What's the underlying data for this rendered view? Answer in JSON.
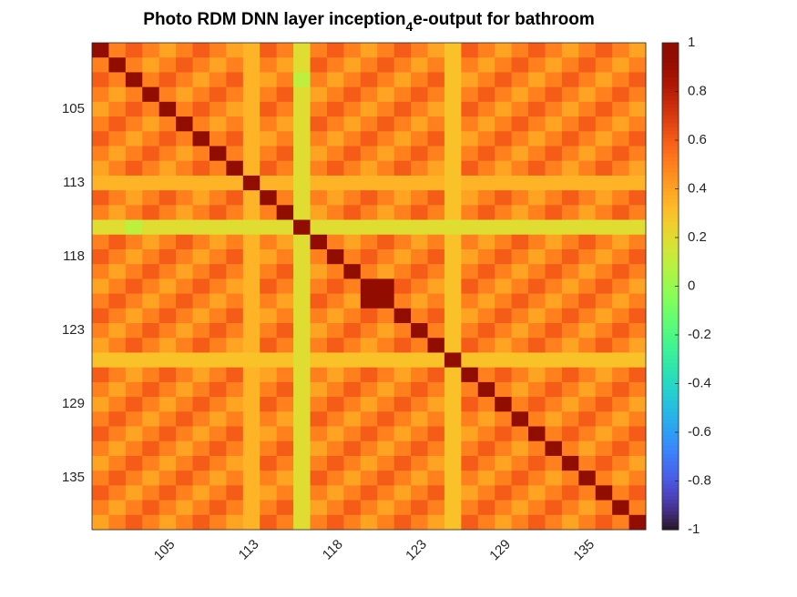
{
  "chart_data": {
    "type": "heatmap",
    "title": [
      "Photo RDM DNN layer inception",
      "4",
      "e-output for bathroom"
    ],
    "categories": [
      null,
      null,
      null,
      null,
      "105",
      null,
      null,
      null,
      null,
      "113",
      null,
      null,
      null,
      null,
      "118",
      null,
      null,
      null,
      null,
      "123",
      null,
      null,
      null,
      null,
      "129",
      null,
      null,
      null,
      null,
      "135",
      null,
      null,
      null
    ],
    "colormap": "turbo",
    "clim": [
      -1,
      1
    ],
    "cticks": [
      -1,
      -0.8,
      -0.6,
      -0.4,
      -0.2,
      0,
      0.2,
      0.4,
      0.6,
      0.8,
      1
    ],
    "values": [
      [
        1,
        0.5,
        0.6,
        0.5,
        0.4,
        0.5,
        0.6,
        0.5,
        0.4,
        0.35,
        0.6,
        0.5,
        0.2,
        0.5,
        0.6,
        0.5,
        0.4,
        0.5,
        0.6,
        0.5,
        0.4,
        0.3,
        0.6,
        0.5,
        0.4,
        0.5,
        0.6,
        0.5,
        0.4,
        0.5,
        0.6,
        0.5,
        0.4
      ],
      [
        0.5,
        1,
        0.5,
        0.4,
        0.5,
        0.6,
        0.5,
        0.4,
        0.5,
        0.35,
        0.5,
        0.4,
        0.2,
        0.6,
        0.5,
        0.4,
        0.5,
        0.6,
        0.5,
        0.4,
        0.5,
        0.3,
        0.5,
        0.4,
        0.5,
        0.6,
        0.5,
        0.4,
        0.5,
        0.6,
        0.5,
        0.4,
        0.5
      ],
      [
        0.6,
        0.5,
        1,
        0.5,
        0.6,
        0.5,
        0.4,
        0.5,
        0.6,
        0.35,
        0.4,
        0.5,
        0.1,
        0.5,
        0.4,
        0.5,
        0.6,
        0.5,
        0.4,
        0.5,
        0.6,
        0.3,
        0.4,
        0.5,
        0.6,
        0.5,
        0.4,
        0.5,
        0.6,
        0.5,
        0.4,
        0.5,
        0.6
      ],
      [
        0.5,
        0.4,
        0.5,
        1,
        0.5,
        0.4,
        0.5,
        0.6,
        0.5,
        0.35,
        0.5,
        0.6,
        0.2,
        0.4,
        0.5,
        0.6,
        0.5,
        0.4,
        0.5,
        0.6,
        0.5,
        0.3,
        0.5,
        0.6,
        0.5,
        0.4,
        0.5,
        0.6,
        0.5,
        0.4,
        0.5,
        0.6,
        0.5
      ],
      [
        0.4,
        0.5,
        0.6,
        0.5,
        1,
        0.5,
        0.6,
        0.5,
        0.4,
        0.35,
        0.6,
        0.5,
        0.2,
        0.5,
        0.6,
        0.5,
        0.4,
        0.5,
        0.6,
        0.5,
        0.4,
        0.3,
        0.6,
        0.5,
        0.4,
        0.5,
        0.6,
        0.5,
        0.4,
        0.5,
        0.6,
        0.5,
        0.4
      ],
      [
        0.5,
        0.6,
        0.5,
        0.4,
        0.5,
        1,
        0.5,
        0.4,
        0.5,
        0.35,
        0.5,
        0.4,
        0.2,
        0.6,
        0.5,
        0.4,
        0.5,
        0.6,
        0.5,
        0.4,
        0.5,
        0.3,
        0.5,
        0.4,
        0.5,
        0.6,
        0.5,
        0.4,
        0.5,
        0.6,
        0.5,
        0.4,
        0.5
      ],
      [
        0.6,
        0.5,
        0.4,
        0.5,
        0.6,
        0.5,
        1,
        0.5,
        0.6,
        0.35,
        0.4,
        0.5,
        0.2,
        0.5,
        0.4,
        0.5,
        0.6,
        0.5,
        0.4,
        0.5,
        0.6,
        0.3,
        0.4,
        0.5,
        0.6,
        0.5,
        0.4,
        0.5,
        0.6,
        0.5,
        0.4,
        0.5,
        0.6
      ],
      [
        0.5,
        0.4,
        0.5,
        0.6,
        0.5,
        0.4,
        0.5,
        1,
        0.5,
        0.35,
        0.5,
        0.6,
        0.2,
        0.4,
        0.5,
        0.6,
        0.5,
        0.4,
        0.5,
        0.6,
        0.5,
        0.3,
        0.5,
        0.6,
        0.5,
        0.4,
        0.5,
        0.6,
        0.5,
        0.4,
        0.5,
        0.6,
        0.5
      ],
      [
        0.4,
        0.5,
        0.6,
        0.5,
        0.4,
        0.5,
        0.6,
        0.5,
        1,
        0.35,
        0.6,
        0.5,
        0.2,
        0.5,
        0.6,
        0.5,
        0.4,
        0.5,
        0.6,
        0.5,
        0.4,
        0.3,
        0.6,
        0.5,
        0.4,
        0.5,
        0.6,
        0.5,
        0.4,
        0.5,
        0.6,
        0.5,
        0.4
      ],
      [
        0.35,
        0.35,
        0.35,
        0.35,
        0.35,
        0.35,
        0.35,
        0.35,
        0.35,
        1,
        0.35,
        0.35,
        0.2,
        0.35,
        0.35,
        0.35,
        0.35,
        0.35,
        0.35,
        0.35,
        0.35,
        0.3,
        0.35,
        0.35,
        0.35,
        0.35,
        0.35,
        0.35,
        0.35,
        0.35,
        0.35,
        0.35,
        0.35
      ],
      [
        0.6,
        0.5,
        0.4,
        0.5,
        0.6,
        0.5,
        0.4,
        0.5,
        0.6,
        0.35,
        1,
        0.5,
        0.2,
        0.5,
        0.4,
        0.5,
        0.6,
        0.5,
        0.4,
        0.5,
        0.6,
        0.3,
        0.4,
        0.5,
        0.6,
        0.5,
        0.4,
        0.5,
        0.6,
        0.5,
        0.4,
        0.5,
        0.6
      ],
      [
        0.5,
        0.4,
        0.5,
        0.6,
        0.5,
        0.4,
        0.5,
        0.6,
        0.5,
        0.35,
        0.5,
        1,
        0.2,
        0.4,
        0.5,
        0.6,
        0.5,
        0.4,
        0.5,
        0.6,
        0.5,
        0.3,
        0.5,
        0.6,
        0.5,
        0.4,
        0.5,
        0.6,
        0.5,
        0.4,
        0.5,
        0.6,
        0.5
      ],
      [
        0.2,
        0.2,
        0.1,
        0.2,
        0.2,
        0.2,
        0.2,
        0.2,
        0.2,
        0.2,
        0.2,
        0.2,
        1,
        0.2,
        0.2,
        0.2,
        0.2,
        0.2,
        0.2,
        0.2,
        0.2,
        0.2,
        0.2,
        0.2,
        0.2,
        0.2,
        0.2,
        0.2,
        0.2,
        0.2,
        0.2,
        0.2,
        0.2
      ],
      [
        0.5,
        0.6,
        0.5,
        0.4,
        0.5,
        0.6,
        0.5,
        0.4,
        0.5,
        0.35,
        0.5,
        0.4,
        0.2,
        1,
        0.5,
        0.4,
        0.5,
        0.6,
        0.5,
        0.4,
        0.5,
        0.3,
        0.5,
        0.4,
        0.5,
        0.6,
        0.5,
        0.4,
        0.5,
        0.6,
        0.5,
        0.4,
        0.5
      ],
      [
        0.6,
        0.5,
        0.4,
        0.5,
        0.6,
        0.5,
        0.4,
        0.5,
        0.6,
        0.35,
        0.4,
        0.5,
        0.2,
        0.5,
        1,
        0.5,
        0.6,
        0.5,
        0.4,
        0.5,
        0.6,
        0.3,
        0.4,
        0.5,
        0.6,
        0.5,
        0.4,
        0.5,
        0.6,
        0.5,
        0.4,
        0.5,
        0.6
      ],
      [
        0.5,
        0.4,
        0.5,
        0.6,
        0.5,
        0.4,
        0.5,
        0.6,
        0.5,
        0.35,
        0.5,
        0.6,
        0.2,
        0.4,
        0.5,
        1,
        0.5,
        0.4,
        0.5,
        0.6,
        0.5,
        0.3,
        0.5,
        0.6,
        0.5,
        0.4,
        0.5,
        0.6,
        0.5,
        0.4,
        0.5,
        0.6,
        0.5
      ],
      [
        0.4,
        0.5,
        0.6,
        0.5,
        0.4,
        0.5,
        0.6,
        0.5,
        0.4,
        0.35,
        0.6,
        0.5,
        0.2,
        0.5,
        0.6,
        0.5,
        1,
        0.95,
        0.6,
        0.5,
        0.4,
        0.3,
        0.6,
        0.5,
        0.4,
        0.5,
        0.6,
        0.5,
        0.4,
        0.5,
        0.6,
        0.5,
        0.4
      ],
      [
        0.5,
        0.6,
        0.5,
        0.4,
        0.5,
        0.6,
        0.5,
        0.4,
        0.5,
        0.35,
        0.5,
        0.4,
        0.2,
        0.6,
        0.5,
        0.4,
        0.95,
        1,
        0.5,
        0.4,
        0.5,
        0.3,
        0.5,
        0.4,
        0.5,
        0.6,
        0.5,
        0.4,
        0.5,
        0.6,
        0.5,
        0.4,
        0.5
      ],
      [
        0.6,
        0.5,
        0.4,
        0.5,
        0.6,
        0.5,
        0.4,
        0.5,
        0.6,
        0.35,
        0.4,
        0.5,
        0.2,
        0.5,
        0.4,
        0.5,
        0.6,
        0.5,
        1,
        0.5,
        0.6,
        0.3,
        0.4,
        0.5,
        0.6,
        0.5,
        0.4,
        0.5,
        0.6,
        0.5,
        0.4,
        0.5,
        0.6
      ],
      [
        0.5,
        0.4,
        0.5,
        0.6,
        0.5,
        0.4,
        0.5,
        0.6,
        0.5,
        0.35,
        0.5,
        0.6,
        0.2,
        0.4,
        0.5,
        0.6,
        0.5,
        0.4,
        0.5,
        1,
        0.5,
        0.3,
        0.5,
        0.6,
        0.5,
        0.4,
        0.5,
        0.6,
        0.5,
        0.4,
        0.5,
        0.6,
        0.5
      ],
      [
        0.4,
        0.5,
        0.6,
        0.5,
        0.4,
        0.5,
        0.6,
        0.5,
        0.4,
        0.35,
        0.6,
        0.5,
        0.2,
        0.5,
        0.6,
        0.5,
        0.4,
        0.5,
        0.6,
        0.5,
        1,
        0.3,
        0.6,
        0.5,
        0.4,
        0.5,
        0.6,
        0.5,
        0.4,
        0.5,
        0.6,
        0.5,
        0.4
      ],
      [
        0.3,
        0.3,
        0.3,
        0.3,
        0.3,
        0.3,
        0.3,
        0.3,
        0.3,
        0.3,
        0.3,
        0.3,
        0.2,
        0.3,
        0.3,
        0.3,
        0.3,
        0.3,
        0.3,
        0.3,
        0.3,
        1,
        0.3,
        0.3,
        0.3,
        0.3,
        0.3,
        0.3,
        0.3,
        0.3,
        0.3,
        0.3,
        0.3
      ],
      [
        0.6,
        0.5,
        0.4,
        0.5,
        0.6,
        0.5,
        0.4,
        0.5,
        0.6,
        0.35,
        0.4,
        0.5,
        0.2,
        0.5,
        0.4,
        0.5,
        0.6,
        0.5,
        0.4,
        0.5,
        0.6,
        0.3,
        1,
        0.5,
        0.6,
        0.5,
        0.4,
        0.5,
        0.6,
        0.5,
        0.4,
        0.5,
        0.6
      ],
      [
        0.5,
        0.4,
        0.5,
        0.6,
        0.5,
        0.4,
        0.5,
        0.6,
        0.5,
        0.35,
        0.5,
        0.6,
        0.2,
        0.4,
        0.5,
        0.6,
        0.5,
        0.4,
        0.5,
        0.6,
        0.5,
        0.3,
        0.5,
        1,
        0.5,
        0.4,
        0.5,
        0.6,
        0.5,
        0.4,
        0.5,
        0.6,
        0.5
      ],
      [
        0.4,
        0.5,
        0.6,
        0.5,
        0.4,
        0.5,
        0.6,
        0.5,
        0.4,
        0.35,
        0.6,
        0.5,
        0.2,
        0.5,
        0.6,
        0.5,
        0.4,
        0.5,
        0.6,
        0.5,
        0.4,
        0.3,
        0.6,
        0.5,
        1,
        0.5,
        0.6,
        0.5,
        0.4,
        0.5,
        0.6,
        0.5,
        0.4
      ],
      [
        0.5,
        0.6,
        0.5,
        0.4,
        0.5,
        0.6,
        0.5,
        0.4,
        0.5,
        0.35,
        0.5,
        0.4,
        0.2,
        0.6,
        0.5,
        0.4,
        0.5,
        0.6,
        0.5,
        0.4,
        0.5,
        0.3,
        0.5,
        0.4,
        0.5,
        1,
        0.5,
        0.4,
        0.5,
        0.6,
        0.5,
        0.4,
        0.5
      ],
      [
        0.6,
        0.5,
        0.4,
        0.5,
        0.6,
        0.5,
        0.4,
        0.5,
        0.6,
        0.35,
        0.4,
        0.5,
        0.2,
        0.5,
        0.4,
        0.5,
        0.6,
        0.5,
        0.4,
        0.5,
        0.6,
        0.3,
        0.4,
        0.5,
        0.6,
        0.5,
        1,
        0.5,
        0.6,
        0.5,
        0.4,
        0.5,
        0.6
      ],
      [
        0.5,
        0.4,
        0.5,
        0.6,
        0.5,
        0.4,
        0.5,
        0.6,
        0.5,
        0.35,
        0.5,
        0.6,
        0.2,
        0.4,
        0.5,
        0.6,
        0.5,
        0.4,
        0.5,
        0.6,
        0.5,
        0.3,
        0.5,
        0.6,
        0.5,
        0.4,
        0.5,
        1,
        0.5,
        0.4,
        0.5,
        0.6,
        0.5
      ],
      [
        0.4,
        0.5,
        0.6,
        0.5,
        0.4,
        0.5,
        0.6,
        0.5,
        0.4,
        0.35,
        0.6,
        0.5,
        0.2,
        0.5,
        0.6,
        0.5,
        0.4,
        0.5,
        0.6,
        0.5,
        0.4,
        0.3,
        0.6,
        0.5,
        0.4,
        0.5,
        0.6,
        0.5,
        1,
        0.5,
        0.6,
        0.5,
        0.4
      ],
      [
        0.5,
        0.6,
        0.5,
        0.4,
        0.5,
        0.6,
        0.5,
        0.4,
        0.5,
        0.35,
        0.5,
        0.4,
        0.2,
        0.6,
        0.5,
        0.4,
        0.5,
        0.6,
        0.5,
        0.4,
        0.5,
        0.3,
        0.5,
        0.4,
        0.5,
        0.6,
        0.5,
        0.4,
        0.5,
        1,
        0.5,
        0.4,
        0.5
      ],
      [
        0.6,
        0.5,
        0.4,
        0.5,
        0.6,
        0.5,
        0.4,
        0.5,
        0.6,
        0.35,
        0.4,
        0.5,
        0.2,
        0.5,
        0.4,
        0.5,
        0.6,
        0.5,
        0.4,
        0.5,
        0.6,
        0.3,
        0.4,
        0.5,
        0.6,
        0.5,
        0.4,
        0.5,
        0.6,
        0.5,
        1,
        0.5,
        0.6
      ],
      [
        0.5,
        0.4,
        0.5,
        0.6,
        0.5,
        0.4,
        0.5,
        0.6,
        0.5,
        0.35,
        0.5,
        0.6,
        0.2,
        0.4,
        0.5,
        0.6,
        0.5,
        0.4,
        0.5,
        0.6,
        0.5,
        0.3,
        0.5,
        0.6,
        0.5,
        0.4,
        0.5,
        0.6,
        0.5,
        0.4,
        0.5,
        1,
        0.5
      ],
      [
        0.4,
        0.5,
        0.6,
        0.5,
        0.4,
        0.5,
        0.6,
        0.5,
        0.4,
        0.35,
        0.6,
        0.5,
        0.2,
        0.5,
        0.6,
        0.5,
        0.4,
        0.5,
        0.6,
        0.5,
        0.4,
        0.3,
        0.6,
        0.5,
        0.4,
        0.5,
        0.6,
        0.5,
        0.4,
        0.5,
        0.6,
        0.5,
        1
      ]
    ]
  }
}
